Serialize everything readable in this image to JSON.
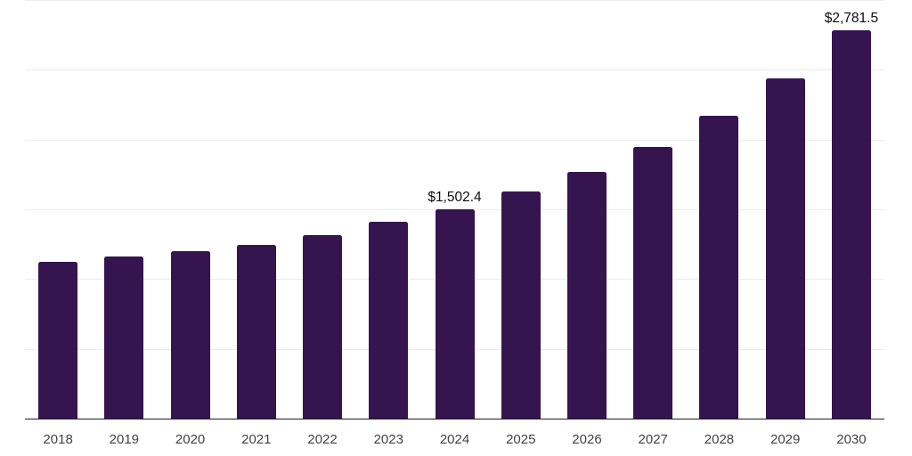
{
  "colors": {
    "bg": "#ffffff",
    "bar": "#361450",
    "grid": "#ececec",
    "axis": "#1f1f1f",
    "tick": "#424242",
    "label": "#0d0d0d"
  },
  "chart_data": {
    "type": "bar",
    "title": "",
    "xlabel": "",
    "ylabel": "",
    "categories": [
      "2018",
      "2019",
      "2020",
      "2021",
      "2022",
      "2023",
      "2024",
      "2025",
      "2026",
      "2027",
      "2028",
      "2029",
      "2030"
    ],
    "values": [
      1123,
      1161,
      1200,
      1247,
      1317,
      1409,
      1502.4,
      1627,
      1766,
      1947,
      2173,
      2440,
      2781.5
    ],
    "data_labels": [
      "",
      "",
      "",
      "",
      "",
      "",
      "$1,502.4",
      "",
      "",
      "",
      "",
      "",
      "$2,781.5"
    ],
    "ylim": [
      0,
      3000
    ],
    "gridline_values": [
      500,
      1000,
      1500,
      2000,
      2500,
      3000
    ],
    "grid": "horizontal only",
    "legend_position": "none",
    "y_axis_labels_visible": false,
    "currency_unit": "$"
  }
}
